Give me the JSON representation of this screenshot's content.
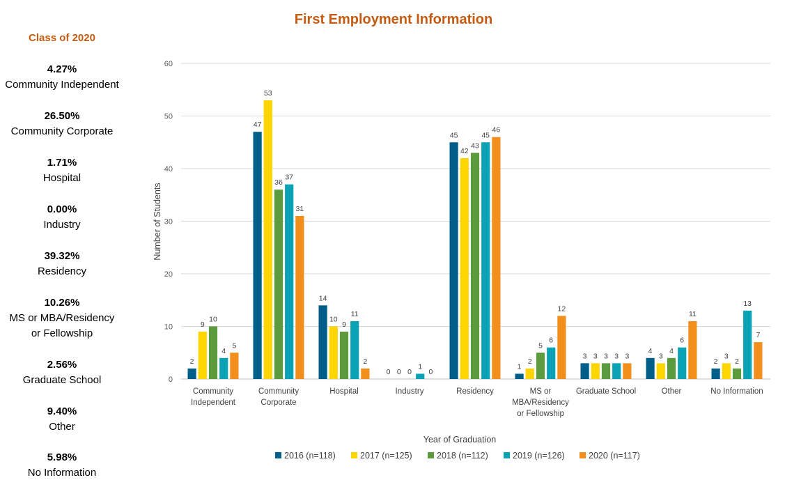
{
  "sidebar": {
    "title": "Class of 2020",
    "stats": [
      {
        "pct": "4.27%",
        "label": [
          "Community Independent"
        ]
      },
      {
        "pct": "26.50%",
        "label": [
          "Community Corporate"
        ]
      },
      {
        "pct": "1.71%",
        "label": [
          "Hospital"
        ]
      },
      {
        "pct": "0.00%",
        "label": [
          "Industry"
        ]
      },
      {
        "pct": "39.32%",
        "label": [
          "Residency"
        ]
      },
      {
        "pct": "10.26%",
        "label": [
          "MS or MBA/Residency",
          "or Fellowship"
        ]
      },
      {
        "pct": "2.56%",
        "label": [
          "Graduate School"
        ]
      },
      {
        "pct": "9.40%",
        "label": [
          "Other"
        ]
      },
      {
        "pct": "5.98%",
        "label": [
          "No Information"
        ]
      }
    ]
  },
  "chart_data": {
    "type": "bar",
    "title": "First Employment Information",
    "xlabel": "Year of Graduation",
    "ylabel": "Number of Students",
    "ylim": [
      0,
      60
    ],
    "yticks": [
      0,
      10,
      20,
      30,
      40,
      50,
      60
    ],
    "grid": true,
    "legend_position": "bottom",
    "categories": [
      [
        "Community",
        "Independent"
      ],
      [
        "Community",
        "Corporate"
      ],
      [
        "Hospital"
      ],
      [
        "Industry"
      ],
      [
        "Residency"
      ],
      [
        "MS or",
        "MBA/Residency",
        "or Fellowship"
      ],
      [
        "Graduate School"
      ],
      [
        "Other"
      ],
      [
        "No Information"
      ]
    ],
    "series": [
      {
        "name": "2016 (n=118)",
        "color": "#005f8a",
        "values": [
          2,
          47,
          14,
          0,
          45,
          1,
          3,
          4,
          2
        ]
      },
      {
        "name": "2017 (n=125)",
        "color": "#ffd500",
        "values": [
          9,
          53,
          10,
          0,
          42,
          2,
          3,
          3,
          3
        ]
      },
      {
        "name": "2018 (n=112)",
        "color": "#5c9b3d",
        "values": [
          10,
          36,
          9,
          0,
          43,
          5,
          3,
          4,
          2
        ]
      },
      {
        "name": "2019 (n=126)",
        "color": "#0aa2b5",
        "values": [
          4,
          37,
          11,
          1,
          45,
          6,
          3,
          6,
          13
        ]
      },
      {
        "name": "2020 (n=117)",
        "color": "#f28e1c",
        "values": [
          5,
          31,
          2,
          0,
          46,
          12,
          3,
          11,
          7
        ]
      }
    ]
  }
}
